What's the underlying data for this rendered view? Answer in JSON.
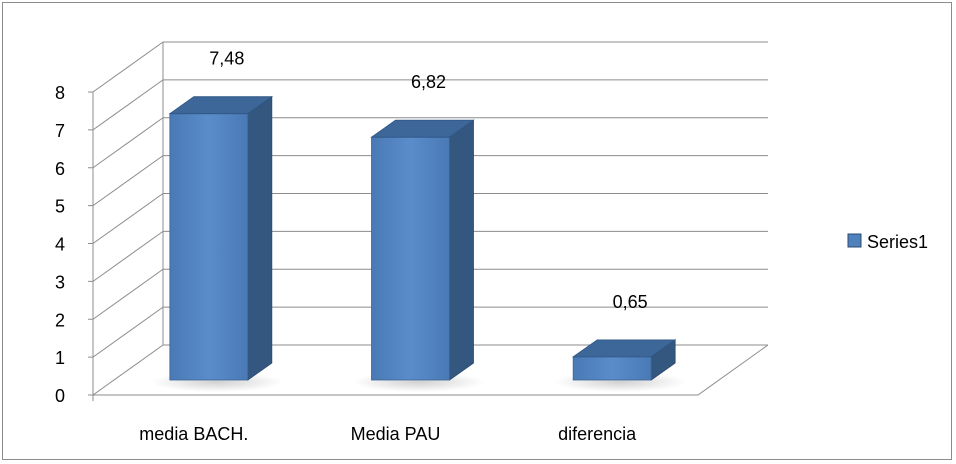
{
  "chart_data": {
    "type": "bar",
    "style": "3d-clustered-column",
    "title": "",
    "xlabel": "",
    "ylabel": "",
    "categories": [
      "media BACH.",
      "Media PAU",
      "diferencia"
    ],
    "series": [
      {
        "name": "Series1",
        "values": [
          7.48,
          6.82,
          0.65
        ],
        "data_labels": [
          "7,48",
          "6,82",
          "0,65"
        ]
      }
    ],
    "ylim": [
      0,
      8
    ],
    "yticks": [
      "0",
      "1",
      "2",
      "3",
      "4",
      "5",
      "6",
      "7",
      "8"
    ],
    "grid": true,
    "legend": "right",
    "colors": {
      "bar_front": "#4f81bd",
      "bar_side": "#34577f",
      "bar_top": "#3d6699",
      "gridline": "#8c8c8c",
      "border": "#8c8c8c"
    }
  }
}
